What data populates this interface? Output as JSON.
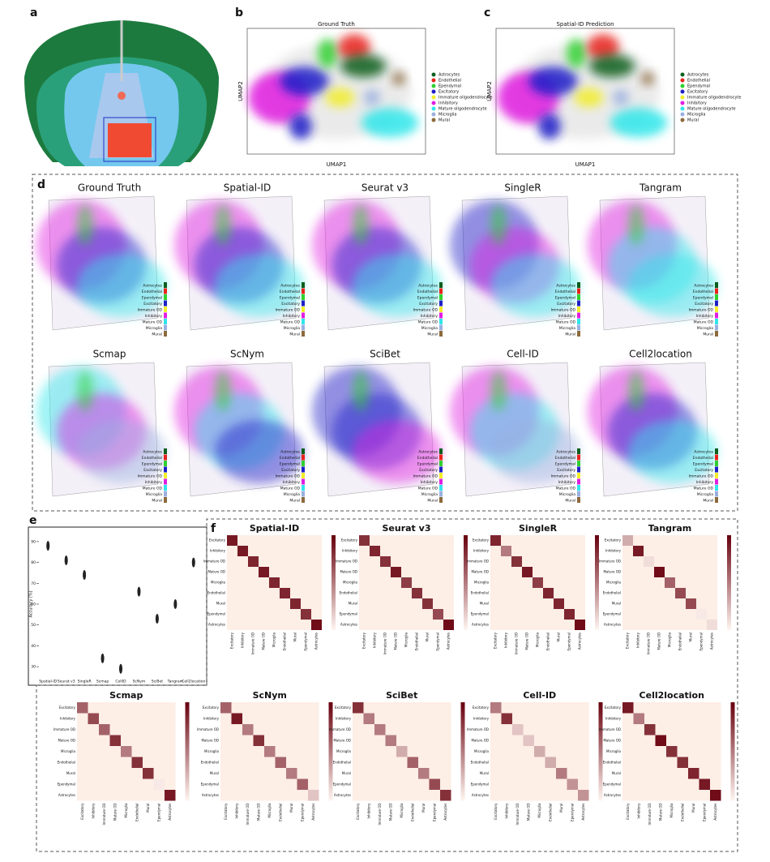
{
  "panel_letters": [
    "a",
    "b",
    "c",
    "d",
    "e",
    "f"
  ],
  "umap": {
    "titles": [
      "Ground Truth",
      "Spatial-ID Prediction"
    ],
    "xlabel": "UMAP1",
    "ylabel": "UMAP2",
    "legend": [
      {
        "name": "Astrocytes",
        "color": "#0b5e1e"
      },
      {
        "name": "Endothelial",
        "color": "#e8231c"
      },
      {
        "name": "Ependymal",
        "color": "#2fd12f"
      },
      {
        "name": "Excitatory",
        "color": "#1f1fc8"
      },
      {
        "name": "Immature oligodendrocyte",
        "color": "#f2ee2a"
      },
      {
        "name": "Inhibitory",
        "color": "#e01ee0"
      },
      {
        "name": "Mature oligodendrocyte",
        "color": "#2fe6ea"
      },
      {
        "name": "Microglia",
        "color": "#9ab0e0"
      },
      {
        "name": "Mural",
        "color": "#8c6a3c"
      }
    ]
  },
  "spatial": {
    "methods": [
      "Ground Truth",
      "Spatial-ID",
      "Seurat v3",
      "SingleR",
      "Tangram",
      "Scmap",
      "ScNym",
      "SciBet",
      "Cell-ID",
      "Cell2location"
    ],
    "legend": [
      "Astrocytes",
      "Endothelial",
      "Ependymal",
      "Excitatory",
      "Immature OD",
      "Inhibitory",
      "Mature OD",
      "Microglia",
      "Mural"
    ]
  },
  "heatmap_labels": [
    "Excitatory",
    "Inhibitory",
    "Immature OD",
    "Mature OD",
    "Microglia",
    "Endothelial",
    "Mural",
    "Ependymal",
    "Astrocytes"
  ],
  "chart_data": [
    {
      "type": "violin",
      "ylabel": "Accuracy (%)",
      "categories": [
        "Spatial-ID",
        "Seurat v3",
        "SingleR",
        "Scmap",
        "CellID",
        "ScNym",
        "SciBet",
        "Tangram",
        "Cell2location"
      ],
      "values": [
        88,
        81,
        74,
        34,
        29,
        66,
        53,
        60,
        80
      ],
      "ylim": [
        25,
        95
      ],
      "yticks": [
        30,
        40,
        50,
        60,
        70,
        80,
        90
      ],
      "color": "#222222"
    },
    {
      "type": "heatmap",
      "title": "Spatial-ID",
      "diagonal": [
        0.9,
        0.9,
        0.85,
        0.9,
        0.85,
        0.85,
        0.85,
        0.8,
        0.95
      ]
    },
    {
      "type": "heatmap",
      "title": "Seurat v3",
      "diagonal": [
        0.8,
        0.85,
        0.8,
        0.9,
        0.75,
        0.8,
        0.8,
        0.7,
        0.95
      ]
    },
    {
      "type": "heatmap",
      "title": "SingleR",
      "diagonal": [
        0.85,
        0.5,
        0.8,
        0.9,
        0.75,
        0.85,
        0.85,
        0.85,
        0.95
      ]
    },
    {
      "type": "heatmap",
      "title": "Tangram",
      "diagonal": [
        0.3,
        0.9,
        0.1,
        0.95,
        0.6,
        0.7,
        0.7,
        0.05,
        0.1
      ]
    },
    {
      "type": "heatmap",
      "title": "Scmap",
      "diagonal": [
        0.6,
        0.7,
        0.6,
        0.8,
        0.5,
        0.8,
        0.8,
        0.05,
        0.9
      ]
    },
    {
      "type": "heatmap",
      "title": "ScNym",
      "diagonal": [
        0.6,
        0.9,
        0.5,
        0.8,
        0.5,
        0.6,
        0.5,
        0.6,
        0.2
      ]
    },
    {
      "type": "heatmap",
      "title": "SciBet",
      "diagonal": [
        0.8,
        0.5,
        0.5,
        0.5,
        0.3,
        0.6,
        0.5,
        0.7,
        0.8
      ]
    },
    {
      "type": "heatmap",
      "title": "Cell-ID",
      "diagonal": [
        0.5,
        0.8,
        0.2,
        0.2,
        0.3,
        0.3,
        0.5,
        0.4,
        0.4
      ]
    },
    {
      "type": "heatmap",
      "title": "Cell2location",
      "diagonal": [
        0.9,
        0.5,
        0.8,
        0.95,
        0.8,
        0.8,
        0.85,
        0.9,
        0.95
      ]
    }
  ]
}
